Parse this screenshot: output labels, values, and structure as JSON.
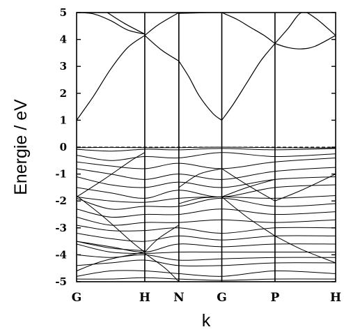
{
  "chart_data": {
    "type": "line",
    "xlabel": "k",
    "ylabel": "Energie / eV",
    "ylim": [
      -5,
      5
    ],
    "yticks": [
      "5",
      "4",
      "3",
      "2",
      "1",
      "0",
      "-1",
      "-2",
      "-3",
      "-4",
      "-5"
    ],
    "yticks_values": [
      5,
      4,
      3,
      2,
      1,
      0,
      -1,
      -2,
      -3,
      -4,
      -5
    ],
    "kpoints": [
      "G",
      "H",
      "N",
      "G",
      "P",
      "H"
    ],
    "kpoint_positions": [
      0,
      1,
      1.5,
      2.13,
      2.91,
      3.8
    ],
    "fermi_level": 0,
    "grid": false,
    "legend": "none",
    "conduction_bands": [
      {
        "name": "",
        "x": [
          0,
          0.25,
          0.5,
          0.75,
          1
        ],
        "y": [
          1.0,
          1.9,
          2.9,
          3.7,
          4.15
        ]
      },
      {
        "name": "",
        "x": [
          0,
          0.25,
          0.5,
          0.75,
          1
        ],
        "y": [
          5.0,
          4.95,
          4.7,
          4.35,
          4.2
        ]
      },
      {
        "name": "",
        "x": [
          0.45,
          0.7,
          1
        ],
        "y": [
          5.0,
          4.6,
          4.2
        ]
      },
      {
        "name": "",
        "x": [
          1,
          1.2,
          1.5
        ],
        "y": [
          4.15,
          4.55,
          5.0
        ]
      },
      {
        "name": "",
        "x": [
          1,
          1.25,
          1.5
        ],
        "y": [
          4.15,
          3.6,
          3.2
        ]
      },
      {
        "name": "",
        "x": [
          1.5,
          1.65,
          1.8,
          2.0,
          2.13
        ],
        "y": [
          3.2,
          2.6,
          1.9,
          1.25,
          1.0
        ]
      },
      {
        "name": "",
        "x": [
          1.5,
          1.8,
          2.13
        ],
        "y": [
          4.97,
          4.99,
          5.0
        ]
      },
      {
        "name": "",
        "x": [
          2.13,
          2.3,
          2.5,
          2.7,
          2.91
        ],
        "y": [
          1.0,
          1.6,
          2.4,
          3.2,
          3.85
        ]
      },
      {
        "name": "",
        "x": [
          2.13,
          2.35,
          2.55,
          2.75,
          2.91
        ],
        "y": [
          5.0,
          4.75,
          4.45,
          4.15,
          3.85
        ]
      },
      {
        "name": "",
        "x": [
          2.91,
          3.1,
          3.3,
          3.5,
          3.8
        ],
        "y": [
          3.85,
          3.7,
          3.65,
          3.75,
          4.15
        ]
      },
      {
        "name": "",
        "x": [
          2.91,
          3.1,
          3.3,
          3.5,
          3.8
        ],
        "y": [
          3.85,
          4.4,
          5.0,
          4.8,
          4.15
        ]
      }
    ],
    "valence_bands": [
      {
        "name": "",
        "x": [
          0,
          0.5,
          1,
          1.5,
          2.13,
          2.91,
          3.8
        ],
        "y": [
          -0.02,
          -0.01,
          -0.02,
          -0.02,
          0.0,
          -0.02,
          -0.03
        ]
      },
      {
        "name": "",
        "x": [
          0,
          0.5,
          1,
          1.5,
          2.13,
          2.91,
          3.8
        ],
        "y": [
          -0.08,
          -0.15,
          -0.08,
          -0.1,
          -0.05,
          -0.1,
          -0.05
        ]
      },
      {
        "name": "",
        "x": [
          0,
          0.5,
          1,
          1.5,
          2.13,
          2.91,
          3.8
        ],
        "y": [
          -0.3,
          -0.5,
          -0.35,
          -0.4,
          -0.2,
          -0.35,
          -0.25
        ]
      },
      {
        "name": "",
        "x": [
          0,
          0.5,
          1,
          1.5,
          2.13,
          2.91,
          3.8
        ],
        "y": [
          -0.55,
          -0.7,
          -0.8,
          -0.6,
          -0.8,
          -0.55,
          -0.4
        ]
      },
      {
        "name": "",
        "x": [
          0,
          0.5,
          1,
          1.5,
          2.13,
          2.91,
          3.8
        ],
        "y": [
          -0.8,
          -1.0,
          -1.2,
          -1.0,
          -1.2,
          -0.9,
          -0.75
        ]
      },
      {
        "name": "",
        "x": [
          0,
          0.5,
          1,
          1.5,
          2.13,
          2.91,
          3.8
        ],
        "y": [
          -1.1,
          -1.4,
          -1.5,
          -1.3,
          -1.5,
          -1.2,
          -1.1
        ]
      },
      {
        "name": "",
        "x": [
          0,
          0.5,
          1,
          1.5,
          2.13,
          2.91,
          3.8
        ],
        "y": [
          -1.5,
          -1.7,
          -1.9,
          -1.6,
          -1.85,
          -1.5,
          -1.4
        ]
      },
      {
        "name": "",
        "x": [
          0,
          0.5,
          1,
          1.5,
          2.13,
          2.91,
          3.8
        ],
        "y": [
          -1.85,
          -2.0,
          -2.05,
          -1.9,
          -1.85,
          -1.9,
          -1.8
        ]
      },
      {
        "name": "",
        "x": [
          0,
          0.5,
          1,
          1.5,
          2.13,
          2.91,
          3.8
        ],
        "y": [
          -1.9,
          -2.3,
          -2.2,
          -2.2,
          -1.9,
          -2.2,
          -2.1
        ]
      },
      {
        "name": "",
        "x": [
          0,
          0.5,
          1,
          1.5,
          2.13,
          2.91,
          3.8
        ],
        "y": [
          -2.3,
          -2.6,
          -2.5,
          -2.5,
          -2.3,
          -2.5,
          -2.4
        ]
      },
      {
        "name": "",
        "x": [
          0,
          0.5,
          1,
          1.5,
          2.13,
          2.91,
          3.8
        ],
        "y": [
          -2.6,
          -2.9,
          -2.8,
          -2.8,
          -2.7,
          -2.8,
          -2.7
        ]
      },
      {
        "name": "",
        "x": [
          0,
          0.5,
          1,
          1.5,
          2.13,
          2.91,
          3.8
        ],
        "y": [
          -2.9,
          -3.1,
          -3.1,
          -3.0,
          -3.2,
          -3.0,
          -3.0
        ]
      },
      {
        "name": "",
        "x": [
          0,
          0.5,
          1,
          1.5,
          2.13,
          2.91,
          3.8
        ],
        "y": [
          -3.2,
          -3.4,
          -3.5,
          -3.3,
          -3.45,
          -3.3,
          -3.3
        ]
      },
      {
        "name": "",
        "x": [
          0,
          0.5,
          1,
          1.5,
          2.13,
          2.91,
          3.8
        ],
        "y": [
          -3.5,
          -3.7,
          -3.9,
          -3.6,
          -3.7,
          -3.6,
          -3.6
        ]
      },
      {
        "name": "",
        "x": [
          0,
          0.5,
          1,
          1.5,
          2.13,
          2.91,
          3.8
        ],
        "y": [
          -3.6,
          -3.9,
          -3.95,
          -3.9,
          -3.9,
          -3.9,
          -3.9
        ]
      },
      {
        "name": "",
        "x": [
          0,
          0.5,
          1,
          1.5,
          2.13,
          2.91,
          3.8
        ],
        "y": [
          -4.0,
          -4.1,
          -4.0,
          -4.2,
          -4.15,
          -4.1,
          -4.1
        ]
      },
      {
        "name": "",
        "x": [
          0,
          0.5,
          1,
          1.5,
          2.13,
          2.91,
          3.8
        ],
        "y": [
          -4.4,
          -4.3,
          -4.2,
          -4.4,
          -4.4,
          -4.3,
          -4.3
        ]
      },
      {
        "name": "",
        "x": [
          0,
          0.5,
          1,
          1.5,
          2.13,
          2.91,
          3.8
        ],
        "y": [
          -4.8,
          -4.6,
          -4.6,
          -4.7,
          -4.8,
          -4.6,
          -4.7
        ]
      },
      {
        "name": "",
        "x": [
          0,
          0.5,
          1,
          1.5,
          2.13,
          2.91,
          3.8
        ],
        "y": [
          -4.9,
          -4.9,
          -4.85,
          -4.9,
          -4.95,
          -4.9,
          -4.9
        ]
      },
      {
        "name": "",
        "x": [
          0,
          0.4,
          0.8,
          1.0
        ],
        "y": [
          -1.8,
          -2.6,
          -3.5,
          -3.9
        ]
      },
      {
        "name": "",
        "x": [
          0,
          0.4,
          0.8,
          1.0
        ],
        "y": [
          -1.85,
          -1.2,
          -0.5,
          -0.2
        ]
      },
      {
        "name": "",
        "x": [
          1.0,
          1.2,
          1.5
        ],
        "y": [
          -3.9,
          -3.4,
          -2.9
        ]
      },
      {
        "name": "",
        "x": [
          1.0,
          1.3,
          1.5
        ],
        "y": [
          -3.95,
          -4.5,
          -5.0
        ]
      },
      {
        "name": "",
        "x": [
          1.5,
          1.8,
          2.13
        ],
        "y": [
          -2.1,
          -1.9,
          -1.85
        ]
      },
      {
        "name": "",
        "x": [
          1.5,
          1.8,
          2.13
        ],
        "y": [
          -1.5,
          -1.0,
          -0.8
        ]
      },
      {
        "name": "",
        "x": [
          2.13,
          2.5,
          2.91
        ],
        "y": [
          -0.8,
          -1.4,
          -2.0
        ]
      },
      {
        "name": "",
        "x": [
          2.13,
          2.5,
          2.91
        ],
        "y": [
          -1.85,
          -2.6,
          -3.3
        ]
      },
      {
        "name": "",
        "x": [
          2.13,
          2.5,
          2.91
        ],
        "y": [
          -1.85,
          -1.5,
          -1.2
        ]
      },
      {
        "name": "",
        "x": [
          2.91,
          3.3,
          3.8
        ],
        "y": [
          -2.0,
          -1.6,
          -1.0
        ]
      },
      {
        "name": "",
        "x": [
          2.91,
          3.3,
          3.8
        ],
        "y": [
          -3.3,
          -3.8,
          -4.3
        ]
      },
      {
        "name": "",
        "x": [
          0,
          0.5,
          1.0
        ],
        "y": [
          -3.5,
          -3.75,
          -3.85
        ]
      },
      {
        "name": "",
        "x": [
          0,
          0.3,
          0.6,
          1.0
        ],
        "y": [
          -4.6,
          -4.3,
          -4.1,
          -3.9
        ]
      }
    ]
  }
}
